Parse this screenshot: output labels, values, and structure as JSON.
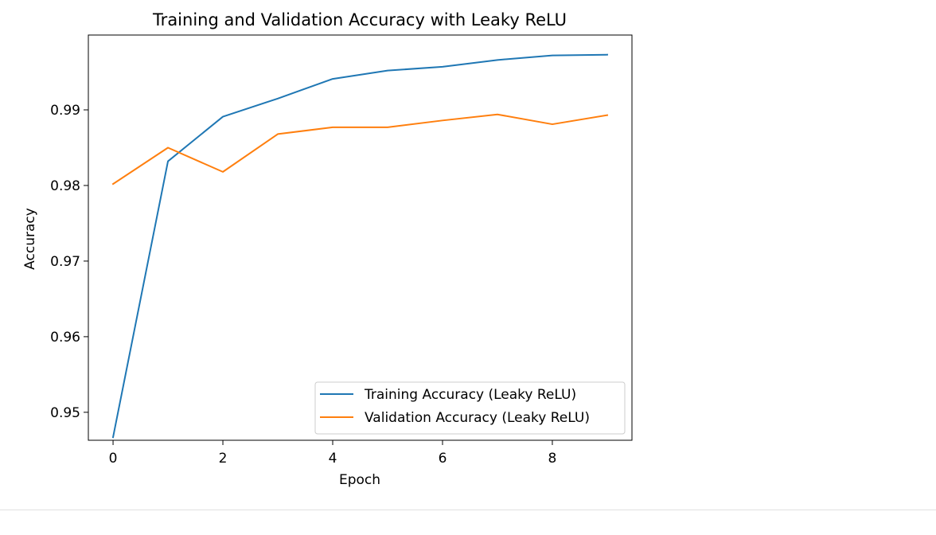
{
  "chart_data": {
    "type": "line",
    "title": "Training and Validation Accuracy with Leaky ReLU",
    "xlabel": "Epoch",
    "ylabel": "Accuracy",
    "xlim": [
      -0.45,
      9.45
    ],
    "ylim": [
      0.9463,
      0.9999
    ],
    "xticks": [
      0,
      2,
      4,
      6,
      8
    ],
    "yticks": [
      0.95,
      0.96,
      0.97,
      0.98,
      0.99
    ],
    "ytick_labels": [
      "0.95",
      "0.96",
      "0.97",
      "0.98",
      "0.99"
    ],
    "legend": "lower-right",
    "grid": false,
    "x": [
      0,
      1,
      2,
      3,
      4,
      5,
      6,
      7,
      8,
      9
    ],
    "series": [
      {
        "name": "Training Accuracy (Leaky ReLU)",
        "color": "#1f77b4",
        "values": [
          0.9467,
          0.9832,
          0.9891,
          0.9915,
          0.9941,
          0.9952,
          0.9957,
          0.9966,
          0.9972,
          0.9973
        ]
      },
      {
        "name": "Validation Accuracy (Leaky ReLU)",
        "color": "#ff7f0e",
        "values": [
          0.9802,
          0.985,
          0.9818,
          0.9868,
          0.9877,
          0.9877,
          0.9886,
          0.9894,
          0.9881,
          0.9893
        ]
      }
    ]
  }
}
